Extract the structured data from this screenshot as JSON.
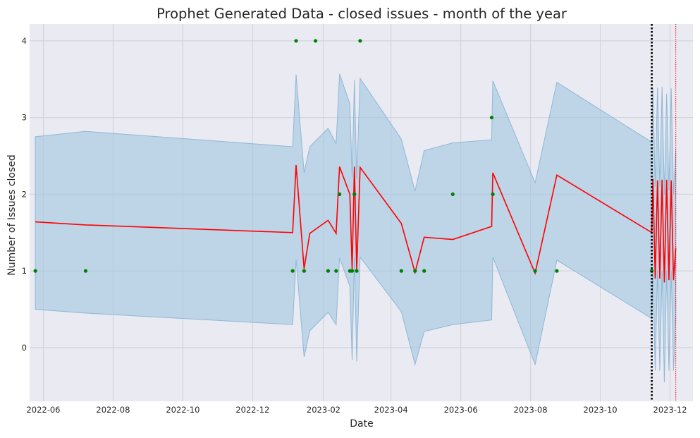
{
  "chart_data": {
    "type": "line",
    "title": "Prophet Generated Data - closed issues - month of the year",
    "xlabel": "Date",
    "ylabel": "Number of Issues closed",
    "x_ticks": [
      "2022-06",
      "2022-08",
      "2022-10",
      "2022-12",
      "2023-02",
      "2023-04",
      "2023-06",
      "2023-08",
      "2023-10",
      "2023-12"
    ],
    "y_ticks": [
      0,
      1,
      2,
      3,
      4
    ],
    "xlim": [
      "2022-05-20",
      "2023-12-21"
    ],
    "ylim": [
      -0.7,
      4.22
    ],
    "grid": true,
    "colors": {
      "background": "#eaeaf2",
      "grid": "#d0d0d8",
      "forecast": "#ff0000",
      "interval": "#a6c8e0",
      "observed": "#008000",
      "cutoff": "#000000",
      "end_marker": "#ff0000"
    },
    "vlines": [
      {
        "x": "2023-11-15",
        "style": "dotted",
        "color": "#000000"
      },
      {
        "x": "2023-12-06",
        "style": "dotted",
        "color": "#ff0000"
      }
    ],
    "series": [
      {
        "role": "forecast",
        "x": [
          "2022-05-25",
          "2022-07-08",
          "2023-01-05",
          "2023-01-08",
          "2023-01-15",
          "2023-01-20",
          "2023-02-05",
          "2023-02-12",
          "2023-02-15",
          "2023-02-24",
          "2023-02-26",
          "2023-02-28",
          "2023-03-02",
          "2023-03-05",
          "2023-04-10",
          "2023-04-22",
          "2023-04-30",
          "2023-05-25",
          "2023-06-28",
          "2023-06-29",
          "2023-08-05",
          "2023-08-24",
          "2023-11-15",
          "2023-11-16",
          "2023-11-18",
          "2023-11-20",
          "2023-11-22",
          "2023-11-24",
          "2023-11-26",
          "2023-11-28",
          "2023-11-30",
          "2023-12-02",
          "2023-12-04",
          "2023-12-06"
        ],
        "y": [
          1.64,
          1.6,
          1.5,
          2.38,
          1.03,
          1.49,
          1.66,
          1.49,
          2.36,
          2.0,
          1.02,
          2.36,
          1.01,
          2.35,
          1.62,
          0.98,
          1.44,
          1.41,
          1.58,
          2.28,
          0.97,
          2.25,
          1.5,
          2.2,
          0.9,
          2.18,
          0.9,
          2.19,
          0.85,
          2.19,
          0.88,
          2.18,
          0.88,
          1.3
        ]
      },
      {
        "role": "interval",
        "x": [
          "2022-05-25",
          "2022-07-08",
          "2023-01-05",
          "2023-01-08",
          "2023-01-15",
          "2023-01-20",
          "2023-02-05",
          "2023-02-12",
          "2023-02-15",
          "2023-02-24",
          "2023-02-26",
          "2023-02-28",
          "2023-03-02",
          "2023-03-05",
          "2023-04-10",
          "2023-04-22",
          "2023-04-30",
          "2023-05-25",
          "2023-06-28",
          "2023-06-29",
          "2023-08-05",
          "2023-08-24",
          "2023-11-15",
          "2023-11-16",
          "2023-11-18",
          "2023-11-20",
          "2023-11-22",
          "2023-11-24",
          "2023-11-26",
          "2023-11-28",
          "2023-11-30",
          "2023-12-02",
          "2023-12-04",
          "2023-12-06"
        ],
        "lower": [
          0.5,
          0.45,
          0.3,
          1.15,
          -0.12,
          0.22,
          0.46,
          0.3,
          1.17,
          0.8,
          -0.16,
          1.18,
          -0.18,
          1.18,
          0.47,
          -0.22,
          0.21,
          0.3,
          0.36,
          1.18,
          -0.22,
          1.14,
          0.38,
          1.0,
          -0.3,
          1.0,
          -0.3,
          1.0,
          -0.45,
          1.0,
          -0.3,
          1.0,
          -0.3,
          0.4
        ],
        "upper": [
          2.75,
          2.82,
          2.62,
          3.56,
          2.28,
          2.62,
          2.86,
          2.66,
          3.57,
          3.18,
          2.22,
          3.49,
          2.2,
          3.51,
          2.72,
          2.04,
          2.57,
          2.67,
          2.71,
          3.48,
          2.15,
          3.46,
          2.68,
          3.38,
          2.1,
          3.39,
          2.1,
          3.4,
          1.99,
          3.31,
          2.05,
          3.38,
          2.0,
          2.6
        ]
      },
      {
        "role": "observed",
        "x": [
          "2022-05-25",
          "2022-07-08",
          "2023-01-05",
          "2023-01-08",
          "2023-01-15",
          "2023-01-25",
          "2023-02-05",
          "2023-02-12",
          "2023-02-15",
          "2023-02-24",
          "2023-02-26",
          "2023-02-28",
          "2023-03-02",
          "2023-03-05",
          "2023-04-10",
          "2023-04-22",
          "2023-04-30",
          "2023-05-25",
          "2023-06-28",
          "2023-06-29",
          "2023-08-05",
          "2023-08-24",
          "2023-11-15"
        ],
        "y": [
          1,
          1,
          1,
          4,
          1,
          4,
          1,
          1,
          2,
          1,
          1,
          2,
          1,
          4,
          1,
          1,
          1,
          2,
          3,
          2,
          1,
          1,
          1
        ]
      }
    ]
  }
}
